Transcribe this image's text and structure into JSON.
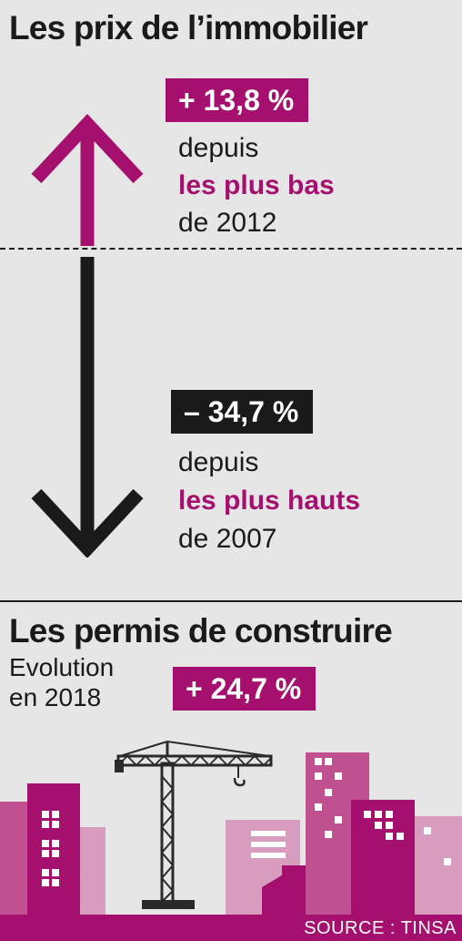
{
  "prix": {
    "title": "Les prix de l’immobilier",
    "hausse": {
      "badge": "+ 13,8 %",
      "line1": "depuis",
      "line2": "les plus bas",
      "line3": "de 2012"
    },
    "baisse": {
      "badge": "– 34,7 %",
      "line1": "depuis",
      "line2": "les plus hauts",
      "line3": "de 2007"
    }
  },
  "permis": {
    "title": "Les permis de construire",
    "sub1": "Evolution",
    "sub2": "en 2018",
    "badge": "+ 24,7 %"
  },
  "source": "SOURCE : TINSA",
  "colors": {
    "accent": "#a5106e",
    "accent_mid": "#c0508f",
    "accent_light": "#d89cbf",
    "dark": "#1a1a1a",
    "background": "#e6e6e6"
  },
  "icons": {
    "up": "arrow-up-icon",
    "down": "arrow-down-icon",
    "scene": "city-crane-illustration"
  }
}
